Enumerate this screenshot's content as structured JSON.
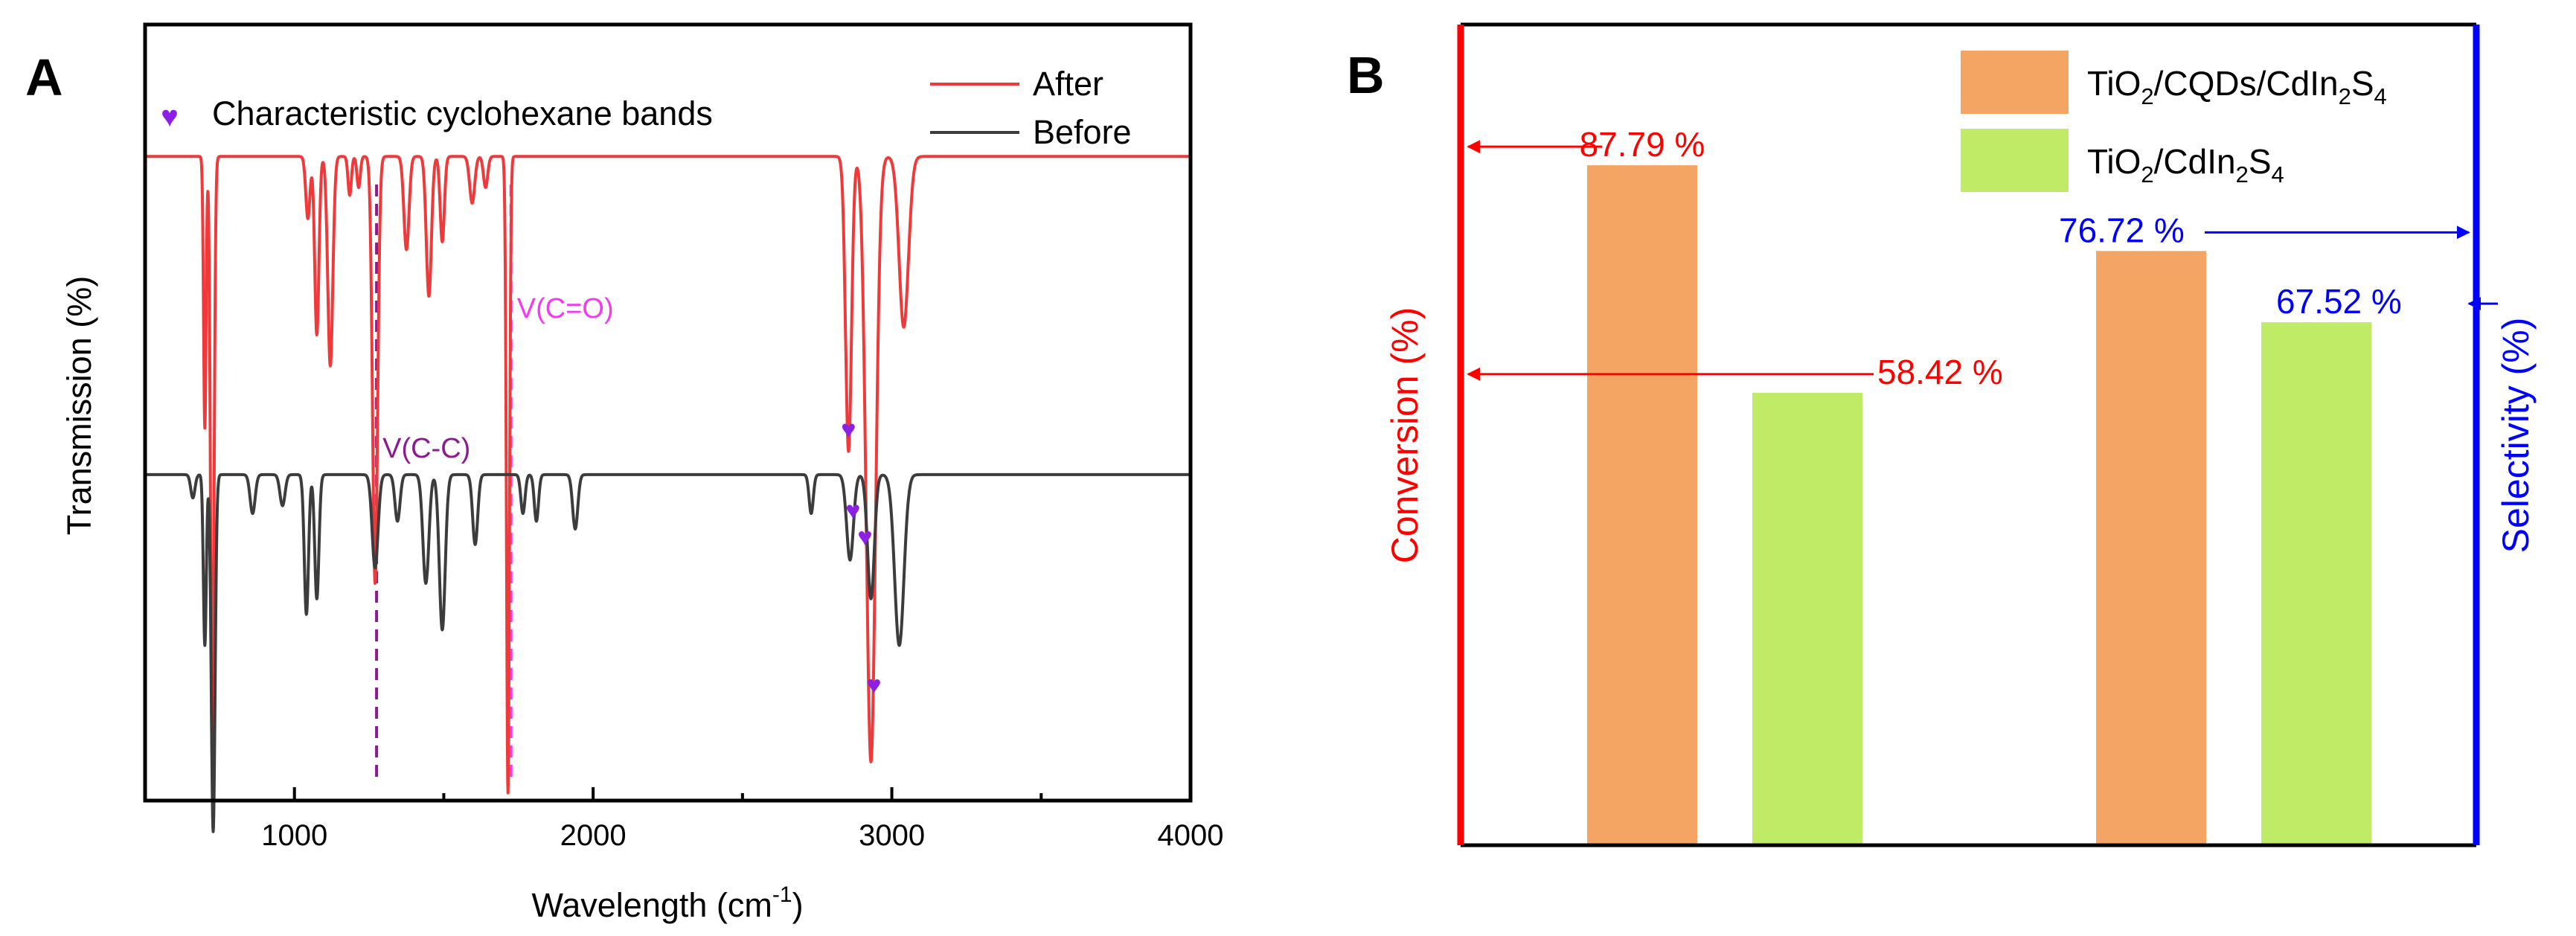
{
  "chart_data": [
    {
      "type": "line",
      "panel_label": "A",
      "xlabel": "Wavelength (cm",
      "xlabel_sup": "-1",
      "xlabel_close": ")",
      "ylabel": "Transmission (%)",
      "xlim": [
        500,
        4000
      ],
      "xticks": [
        1000,
        2000,
        3000,
        4000
      ],
      "xtick_labels": [
        "1000",
        "2000",
        "3000",
        "4000"
      ],
      "legend": {
        "marker_entry": "Characteristic cyclohexane bands",
        "marker_glyph": "♥",
        "marker_color": "#8b1fe6"
      },
      "series": [
        {
          "name": "After",
          "color": "#ee3a3a",
          "baseline": 0.83,
          "features": [
            {
              "x": 700,
              "depth": 0.35,
              "w": 6
            },
            {
              "x": 725,
              "depth": 0.78,
              "w": 8
            },
            {
              "x": 1045,
              "depth": 0.08,
              "w": 10
            },
            {
              "x": 1075,
              "depth": 0.23,
              "w": 10
            },
            {
              "x": 1120,
              "depth": 0.27,
              "w": 12
            },
            {
              "x": 1185,
              "depth": 0.05,
              "w": 8
            },
            {
              "x": 1215,
              "depth": 0.04,
              "w": 8
            },
            {
              "x": 1270,
              "depth": 0.55,
              "w": 12
            },
            {
              "x": 1375,
              "depth": 0.12,
              "w": 12
            },
            {
              "x": 1450,
              "depth": 0.18,
              "w": 12
            },
            {
              "x": 1495,
              "depth": 0.11,
              "w": 10
            },
            {
              "x": 1595,
              "depth": 0.06,
              "w": 12
            },
            {
              "x": 1640,
              "depth": 0.04,
              "w": 10
            },
            {
              "x": 1715,
              "depth": 0.82,
              "w": 7
            },
            {
              "x": 2855,
              "depth": 0.38,
              "w": 14
            },
            {
              "x": 2930,
              "depth": 0.78,
              "w": 22
            },
            {
              "x": 3040,
              "depth": 0.22,
              "w": 22
            }
          ]
        },
        {
          "name": "Before",
          "color": "#3c3c3c",
          "baseline": 0.42,
          "features": [
            {
              "x": 660,
              "depth": 0.03,
              "w": 10
            },
            {
              "x": 700,
              "depth": 0.22,
              "w": 7
            },
            {
              "x": 728,
              "depth": 0.46,
              "w": 9
            },
            {
              "x": 860,
              "depth": 0.05,
              "w": 12
            },
            {
              "x": 960,
              "depth": 0.04,
              "w": 12
            },
            {
              "x": 1040,
              "depth": 0.18,
              "w": 10
            },
            {
              "x": 1075,
              "depth": 0.16,
              "w": 10
            },
            {
              "x": 1270,
              "depth": 0.12,
              "w": 14
            },
            {
              "x": 1345,
              "depth": 0.06,
              "w": 12
            },
            {
              "x": 1440,
              "depth": 0.14,
              "w": 14
            },
            {
              "x": 1495,
              "depth": 0.2,
              "w": 14
            },
            {
              "x": 1605,
              "depth": 0.09,
              "w": 12
            },
            {
              "x": 1765,
              "depth": 0.05,
              "w": 10
            },
            {
              "x": 1810,
              "depth": 0.06,
              "w": 10
            },
            {
              "x": 1940,
              "depth": 0.07,
              "w": 12
            },
            {
              "x": 2730,
              "depth": 0.05,
              "w": 10
            },
            {
              "x": 2860,
              "depth": 0.11,
              "w": 16
            },
            {
              "x": 2930,
              "depth": 0.16,
              "w": 16
            },
            {
              "x": 3025,
              "depth": 0.22,
              "w": 22
            }
          ]
        }
      ],
      "reference_lines": [
        {
          "x": 1275,
          "label": "V(C-C)",
          "color": "#8b1b8f"
        },
        {
          "x": 1725,
          "label": "V(C=O)",
          "color": "#f03cf0"
        }
      ],
      "band_markers": [
        {
          "series": "After",
          "x": 2855
        },
        {
          "series": "After",
          "x": 2940
        },
        {
          "series": "Before",
          "x": 2870
        },
        {
          "series": "Before",
          "x": 2910
        }
      ]
    },
    {
      "type": "bar",
      "panel_label": "B",
      "left_ylabel": "Conversion (%)",
      "right_ylabel": "Selectivity (%)",
      "left_color": "#ff0000",
      "right_color": "#0000ff",
      "ylim": [
        0,
        100
      ],
      "groups": [
        "Conversion",
        "Selectivity"
      ],
      "series": [
        {
          "name": "TiO2/CQDs/CdIn2S4",
          "color": "#f4a563",
          "label_parts": [
            [
              "TiO",
              ""
            ],
            [
              "2",
              "sub"
            ],
            [
              "/CQDs/CdIn",
              ""
            ],
            [
              "2",
              "sub"
            ],
            [
              "S",
              ""
            ],
            [
              "4",
              "sub"
            ]
          ],
          "values": [
            87.79,
            76.72
          ]
        },
        {
          "name": "TiO2/CdIn2S4",
          "color": "#bfeb67",
          "label_parts": [
            [
              "TiO",
              ""
            ],
            [
              "2",
              "sub"
            ],
            [
              "/CdIn",
              ""
            ],
            [
              "2",
              "sub"
            ],
            [
              "S",
              ""
            ],
            [
              "4",
              "sub"
            ]
          ],
          "values": [
            58.42,
            67.52
          ]
        }
      ],
      "value_labels": [
        "87.79 %",
        "58.42 %",
        "76.72 %",
        "67.52 %"
      ]
    }
  ]
}
